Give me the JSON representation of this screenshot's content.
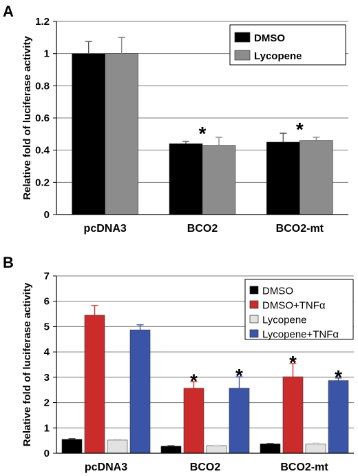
{
  "chart_data": [
    {
      "panel_label": "A",
      "type": "bar",
      "ylabel": "Relative fold of luciferase activity",
      "ylim": [
        0,
        1.2
      ],
      "yticks": [
        0,
        0.2,
        0.4,
        0.6,
        0.8,
        1,
        1.2
      ],
      "ytick_labels": [
        "0",
        "0.2",
        "0.4",
        "0.6",
        "0.8",
        "1",
        "1.2"
      ],
      "categories": [
        "pcDNA3",
        "BCO2",
        "BCO2-mt"
      ],
      "series": [
        {
          "name": "DMSO",
          "color": "#000000",
          "values": [
            1.0,
            0.44,
            0.45
          ],
          "errors": [
            0.075,
            0.015,
            0.055
          ]
        },
        {
          "name": "Lycopene",
          "color": "#8c8c8c",
          "values": [
            1.0,
            0.43,
            0.46
          ],
          "errors": [
            0.1,
            0.05,
            0.02
          ]
        }
      ],
      "significance": [
        "",
        "*",
        "*"
      ],
      "legend_position": "top-right",
      "grid": true
    },
    {
      "panel_label": "B",
      "type": "bar",
      "ylabel": "Relative fold of luciferase activity",
      "ylim": [
        0,
        7
      ],
      "yticks": [
        0,
        1,
        2,
        3,
        4,
        5,
        6,
        7
      ],
      "ytick_labels": [
        "0",
        "1",
        "2",
        "3",
        "4",
        "5",
        "6",
        "7"
      ],
      "categories": [
        "pcDNA3",
        "BCO2",
        "BCO2-mt"
      ],
      "series": [
        {
          "name": "DMSO",
          "color": "#000000",
          "values": [
            0.55,
            0.28,
            0.37
          ],
          "errors": [
            0.03,
            0.02,
            0.02
          ]
        },
        {
          "name": "DMSO+TNFα",
          "color": "#cc2b2b",
          "values": [
            5.45,
            2.57,
            3.02
          ],
          "errors": [
            0.38,
            0.25,
            0.52
          ]
        },
        {
          "name": "Lycopene",
          "color": "#e2e2e2",
          "values": [
            0.52,
            0.3,
            0.36
          ],
          "errors": [
            0.03,
            0.02,
            0.05
          ]
        },
        {
          "name": "Lycopene+TNFα",
          "color": "#3a55a8",
          "values": [
            4.87,
            2.57,
            2.87
          ],
          "errors": [
            0.2,
            0.45,
            0.1
          ]
        }
      ],
      "significance_marks": [
        {
          "category": 1,
          "series": 1,
          "text": "*"
        },
        {
          "category": 1,
          "series": 3,
          "text": "*"
        },
        {
          "category": 2,
          "series": 1,
          "text": "*"
        },
        {
          "category": 2,
          "series": 3,
          "text": "*"
        }
      ],
      "legend_position": "top-right",
      "grid": true
    }
  ]
}
